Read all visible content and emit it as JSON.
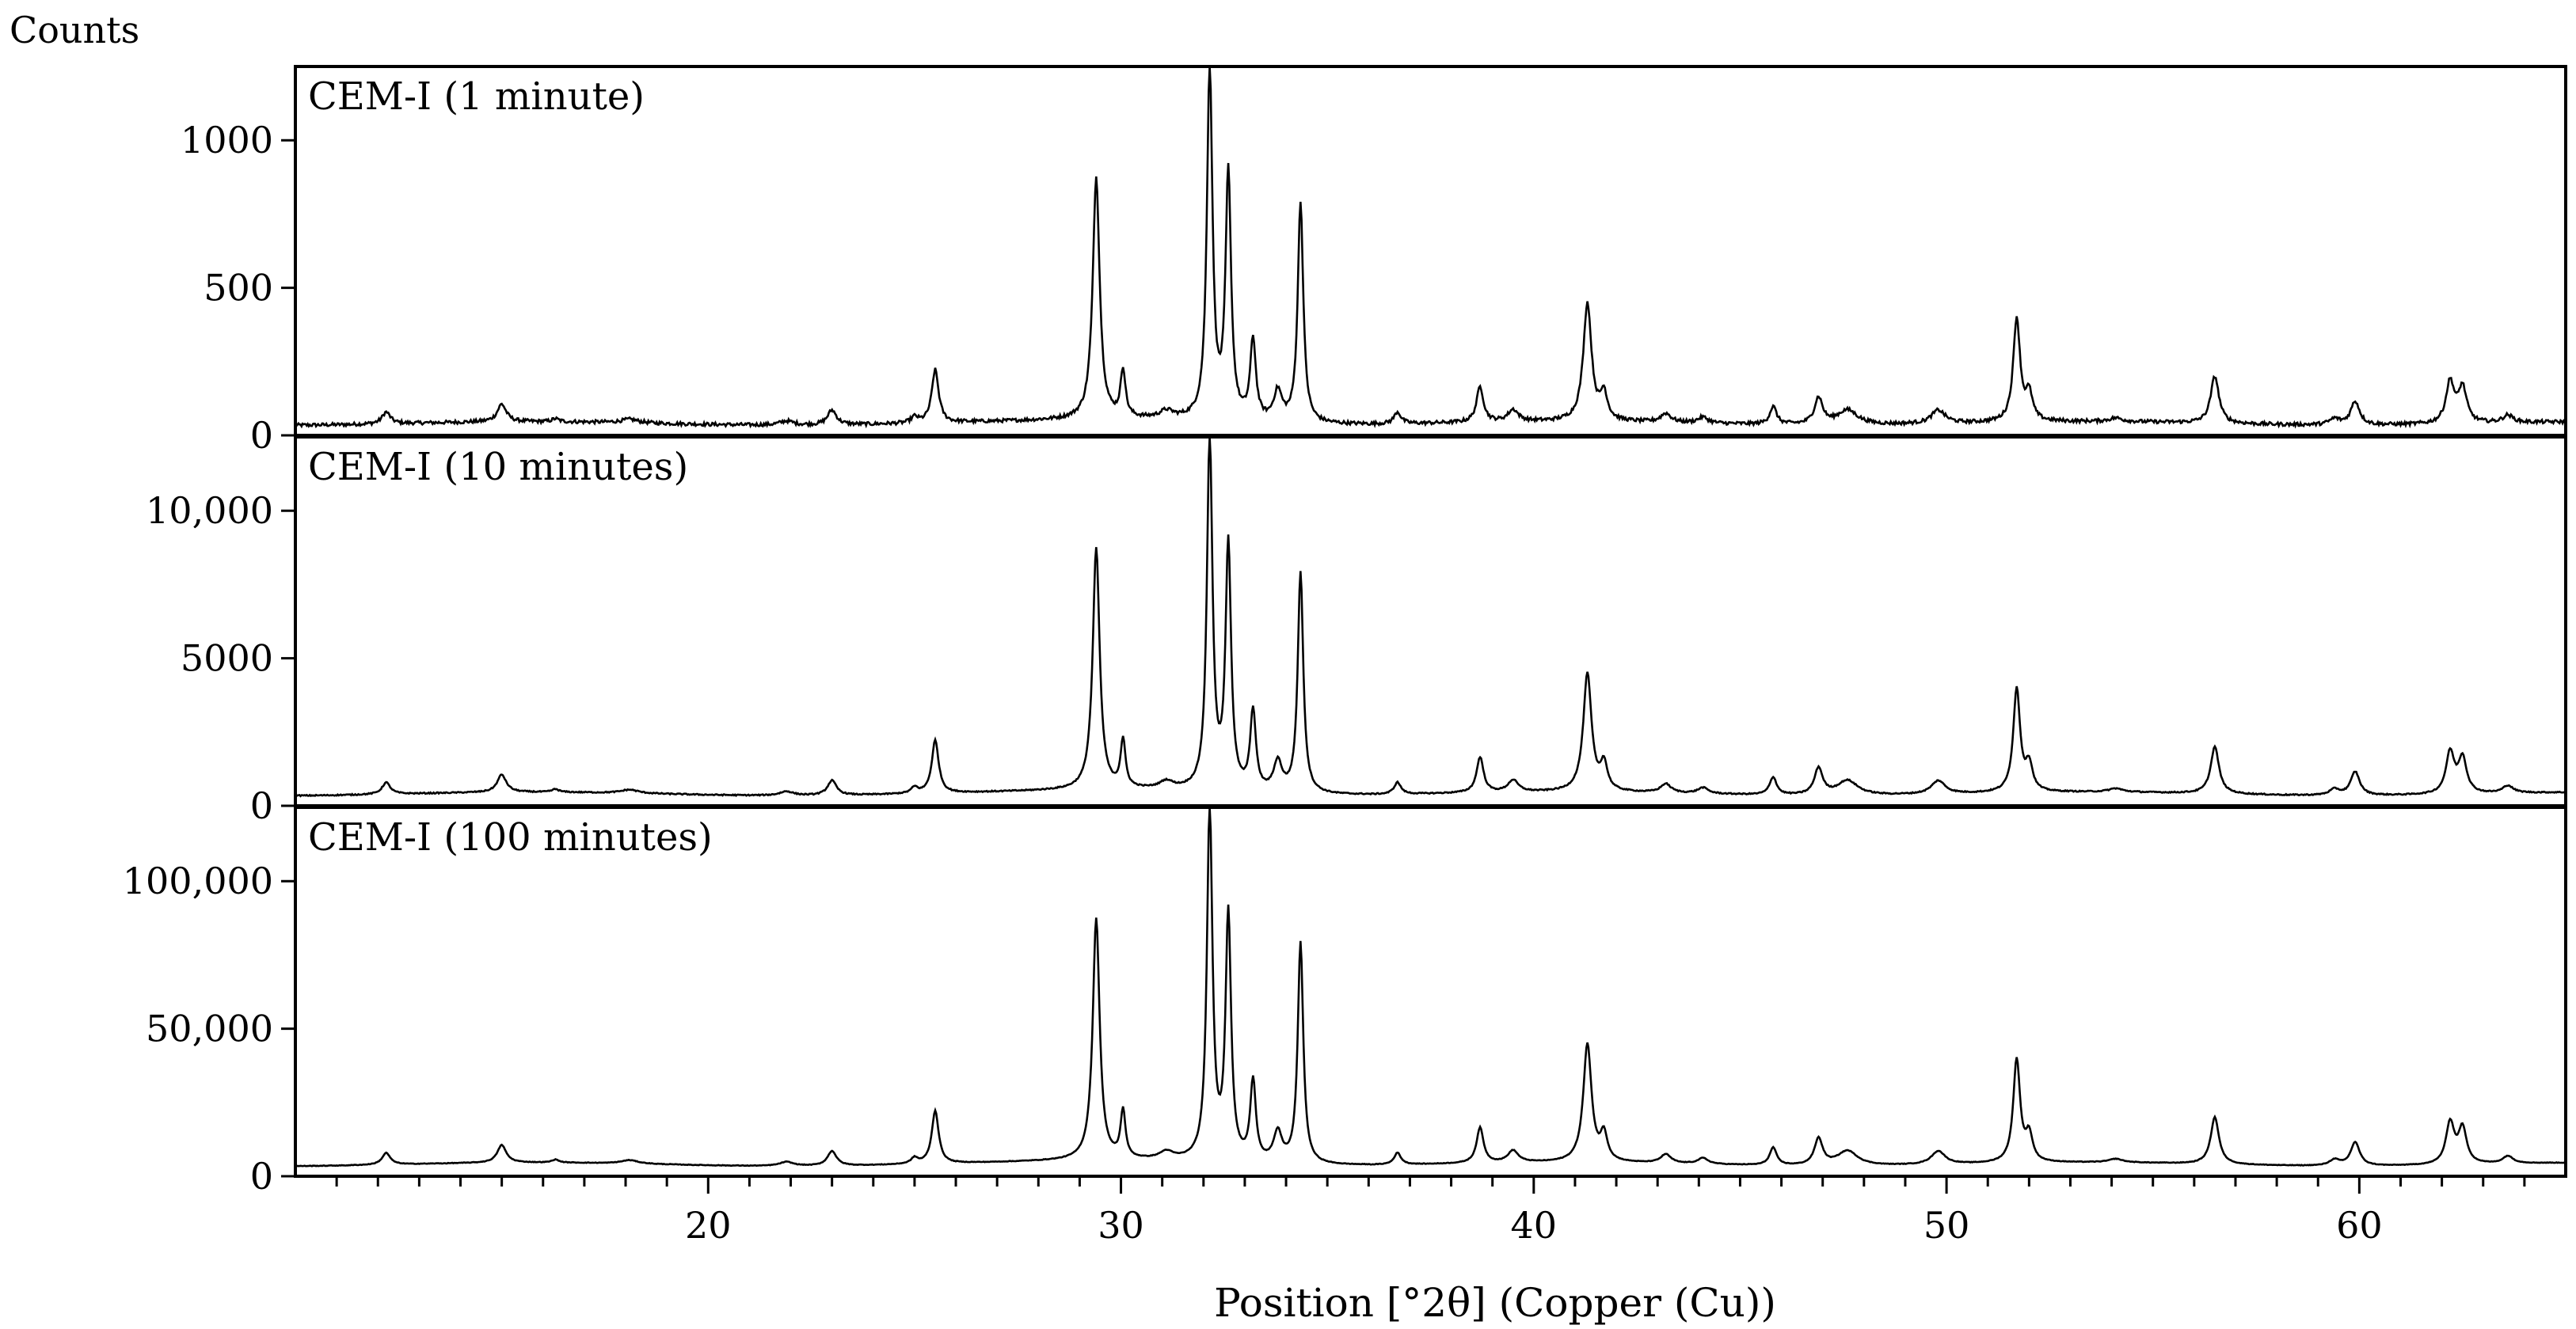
{
  "chart_data": {
    "type": "line",
    "ylabel": "Counts",
    "xlabel": "Position [°2θ] (Copper (Cu))",
    "xlim": [
      10,
      65
    ],
    "x_ticks": [
      20,
      30,
      40,
      50,
      60
    ],
    "x_tick_labels": [
      "20",
      "30",
      "40",
      "50",
      "60"
    ],
    "x_minor_step": 1,
    "grid": false,
    "panels": [
      {
        "label": "CEM-I (1 minute)",
        "ylim": [
          0,
          1250
        ],
        "y_ticks": [
          0,
          500,
          1000
        ],
        "y_tick_labels": [
          "0",
          "500",
          "1000"
        ],
        "scale": 1,
        "baseline": 40
      },
      {
        "label": "CEM-I (10 minutes)",
        "ylim": [
          0,
          12500
        ],
        "y_ticks": [
          0,
          5000,
          10000
        ],
        "y_tick_labels": [
          "0",
          "5000",
          "10,000"
        ],
        "scale": 10,
        "baseline": 40
      },
      {
        "label": "CEM-I (100 minutes)",
        "ylim": [
          0,
          125000
        ],
        "y_ticks": [
          0,
          50000,
          100000
        ],
        "y_tick_labels": [
          "0",
          "50,000",
          "100,000"
        ],
        "scale": 100,
        "baseline": 40
      }
    ],
    "peaks": [
      {
        "x": 12.2,
        "y": 40,
        "w": 0.12
      },
      {
        "x": 15.0,
        "y": 60,
        "w": 0.13
      },
      {
        "x": 16.3,
        "y": 10,
        "w": 0.1
      },
      {
        "x": 18.1,
        "y": 12,
        "w": 0.25
      },
      {
        "x": 21.9,
        "y": 14,
        "w": 0.2
      },
      {
        "x": 23.0,
        "y": 50,
        "w": 0.13
      },
      {
        "x": 25.0,
        "y": 20,
        "w": 0.1
      },
      {
        "x": 25.5,
        "y": 180,
        "w": 0.1
      },
      {
        "x": 29.4,
        "y": 820,
        "w": 0.1
      },
      {
        "x": 30.05,
        "y": 160,
        "w": 0.07
      },
      {
        "x": 31.1,
        "y": 25,
        "w": 0.2
      },
      {
        "x": 32.15,
        "y": 1200,
        "w": 0.08
      },
      {
        "x": 32.6,
        "y": 830,
        "w": 0.08
      },
      {
        "x": 33.2,
        "y": 270,
        "w": 0.08
      },
      {
        "x": 33.8,
        "y": 100,
        "w": 0.12
      },
      {
        "x": 34.35,
        "y": 750,
        "w": 0.08
      },
      {
        "x": 36.7,
        "y": 40,
        "w": 0.1
      },
      {
        "x": 38.7,
        "y": 120,
        "w": 0.1
      },
      {
        "x": 39.5,
        "y": 40,
        "w": 0.15
      },
      {
        "x": 41.3,
        "y": 400,
        "w": 0.12
      },
      {
        "x": 41.7,
        "y": 90,
        "w": 0.1
      },
      {
        "x": 43.2,
        "y": 30,
        "w": 0.15
      },
      {
        "x": 44.1,
        "y": 20,
        "w": 0.15
      },
      {
        "x": 45.8,
        "y": 60,
        "w": 0.1
      },
      {
        "x": 46.9,
        "y": 90,
        "w": 0.12
      },
      {
        "x": 47.6,
        "y": 50,
        "w": 0.3
      },
      {
        "x": 49.8,
        "y": 45,
        "w": 0.2
      },
      {
        "x": 51.7,
        "y": 350,
        "w": 0.1
      },
      {
        "x": 52.0,
        "y": 90,
        "w": 0.1
      },
      {
        "x": 54.1,
        "y": 12,
        "w": 0.2
      },
      {
        "x": 56.5,
        "y": 160,
        "w": 0.12
      },
      {
        "x": 59.4,
        "y": 20,
        "w": 0.15
      },
      {
        "x": 59.9,
        "y": 80,
        "w": 0.13
      },
      {
        "x": 62.2,
        "y": 140,
        "w": 0.12
      },
      {
        "x": 62.5,
        "y": 120,
        "w": 0.12
      },
      {
        "x": 63.6,
        "y": 25,
        "w": 0.15
      }
    ]
  }
}
